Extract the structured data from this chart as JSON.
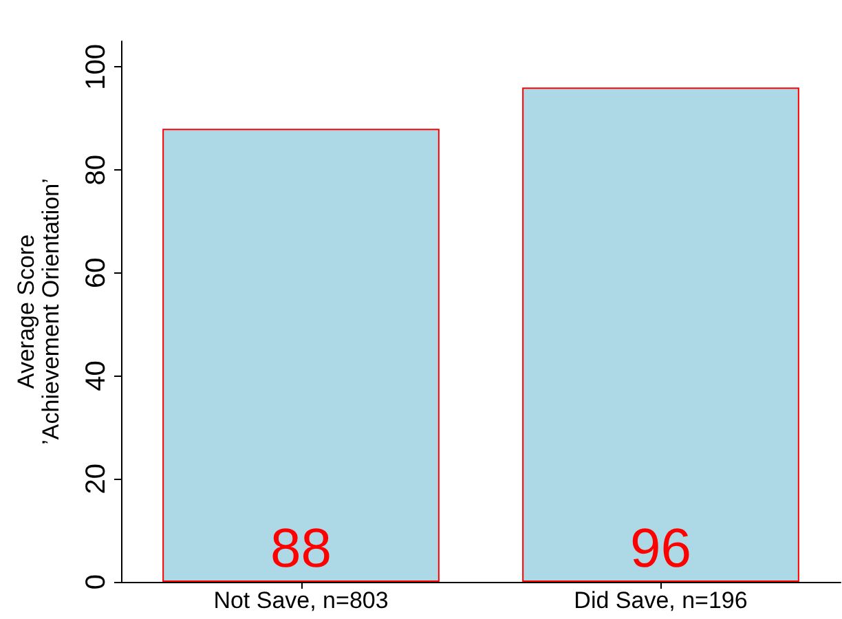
{
  "chart_data": {
    "type": "bar",
    "ylabel": "Average Score\n’Achievement Orientation’",
    "categories": [
      "Not Save, n=803",
      "Did Save, n=196"
    ],
    "series": [
      {
        "color": "#add8e6",
        "values": [
          88,
          96
        ]
      }
    ],
    "ylim": [
      0,
      105
    ],
    "yticks": [
      0,
      20,
      40,
      60,
      80,
      100
    ],
    "grid": false,
    "data_labels": true
  }
}
